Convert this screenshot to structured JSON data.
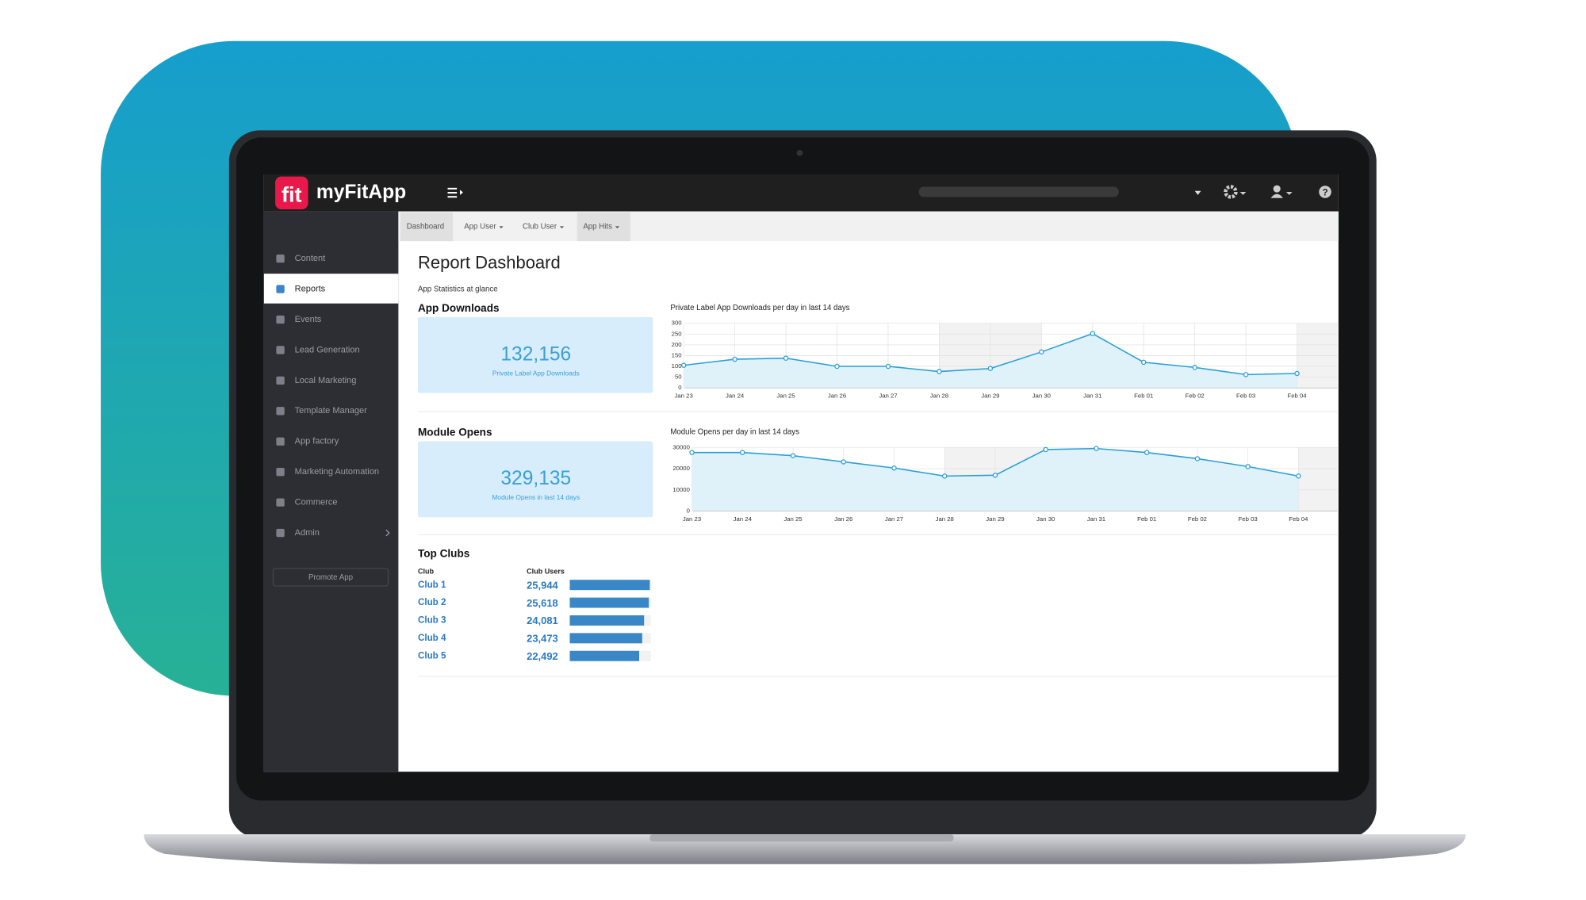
{
  "header": {
    "logo": "fit",
    "app_name": "myFitApp"
  },
  "sidebar": {
    "items": [
      "Content",
      "Reports",
      "Events",
      "Lead Generation",
      "Local Marketing",
      "Template Manager",
      "App factory",
      "Marketing Automation",
      "Commerce",
      "Admin"
    ],
    "active": 1,
    "button": "Promote App"
  },
  "tabs": [
    "Dashboard",
    "App User",
    "Club User",
    "App Hits"
  ],
  "page": {
    "title": "Report Dashboard",
    "subtitle": "App Statistics at glance"
  },
  "app_downloads": {
    "heading": "App Downloads",
    "total": "132,156",
    "total_label": "Private Label App Downloads",
    "chart": {
      "type": "line",
      "title": "Private Label App Downloads per day in last 14 days",
      "color": "#2a9fd6",
      "categories": [
        "Jan 23",
        "Jan 24",
        "Jan 25",
        "Jan 26",
        "Jan 27",
        "Jan 28",
        "Jan 29",
        "Jan 30",
        "Jan 31",
        "Feb 01",
        "Feb 02",
        "Feb 03",
        "Feb 04"
      ],
      "values": [
        105,
        133,
        138,
        100,
        100,
        76,
        90,
        167,
        252,
        119,
        95,
        62,
        67
      ],
      "ylim": [
        0,
        300
      ],
      "yticks": [
        0,
        50,
        100,
        150,
        200,
        250,
        300
      ]
    }
  },
  "module_opens": {
    "heading": "Module Opens",
    "total": "329,135",
    "total_label": "Module Opens in last 14 days",
    "chart": {
      "type": "line",
      "title": "Module Opens per day in last 14 days",
      "color": "#2a9fd6",
      "categories": [
        "Jan 23",
        "Jan 24",
        "Jan 25",
        "Jan 26",
        "Jan 27",
        "Jan 28",
        "Jan 29",
        "Jan 30",
        "Jan 31",
        "Feb 01",
        "Feb 02",
        "Feb 03",
        "Feb 04"
      ],
      "values": [
        27600,
        27600,
        26100,
        23200,
        20300,
        16500,
        16900,
        29000,
        29500,
        27600,
        24700,
        21000,
        16500
      ],
      "ylim": [
        0,
        30000
      ],
      "yticks": [
        0,
        10000,
        20000,
        30000
      ]
    }
  },
  "top_clubs": {
    "heading": "Top Clubs",
    "columns": [
      "Club",
      "Club Users"
    ],
    "color": "#3a87c8",
    "rows": [
      {
        "name": "Club 1",
        "users": 25944,
        "users_label": "25,944"
      },
      {
        "name": "Club 2",
        "users": 25618,
        "users_label": "25,618"
      },
      {
        "name": "Club 3",
        "users": 24081,
        "users_label": "24,081"
      },
      {
        "name": "Club 4",
        "users": 23473,
        "users_label": "23,473"
      },
      {
        "name": "Club 5",
        "users": 22492,
        "users_label": "22,492"
      }
    ]
  }
}
